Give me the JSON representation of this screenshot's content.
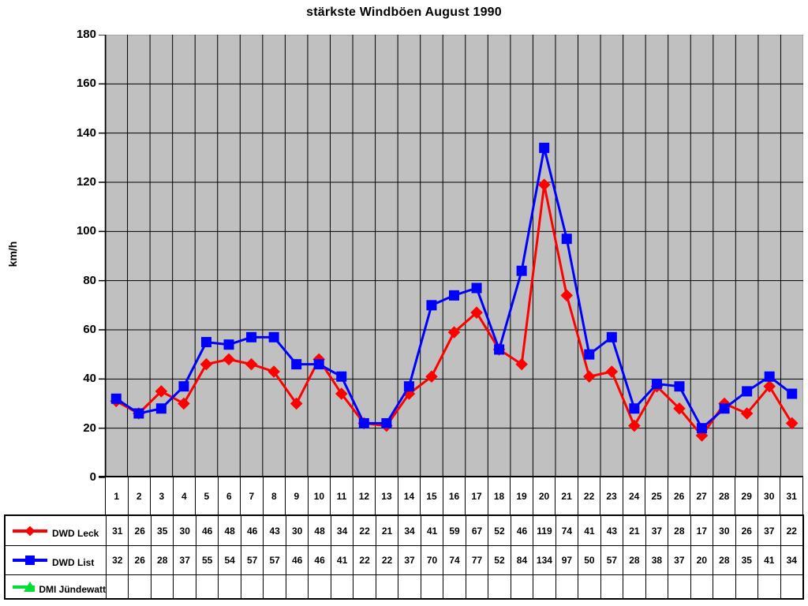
{
  "chart_data": {
    "type": "line",
    "title": "stärkste Windböen August 1990",
    "xlabel": "",
    "ylabel": "km/h",
    "ylim": [
      0,
      180
    ],
    "ytick_step": 20,
    "grid": true,
    "plot_bg_color": "#c0c0c0",
    "grid_color": "#000000",
    "axis_color": "#000000",
    "legend_position": "table-left",
    "categories": [
      1,
      2,
      3,
      4,
      5,
      6,
      7,
      8,
      9,
      10,
      11,
      12,
      13,
      14,
      15,
      16,
      17,
      18,
      19,
      20,
      21,
      22,
      23,
      24,
      25,
      26,
      27,
      28,
      29,
      30,
      31
    ],
    "series": [
      {
        "name": "DWD Leck",
        "color": "#ff0000",
        "marker": "diamond",
        "values": [
          31,
          26,
          35,
          30,
          46,
          48,
          46,
          43,
          30,
          48,
          34,
          22,
          21,
          34,
          41,
          59,
          67,
          52,
          46,
          119,
          74,
          41,
          43,
          21,
          37,
          28,
          17,
          30,
          26,
          37,
          22
        ]
      },
      {
        "name": "DWD List",
        "color": "#0000ff",
        "marker": "square",
        "values": [
          32,
          26,
          28,
          37,
          55,
          54,
          57,
          57,
          46,
          46,
          41,
          22,
          22,
          37,
          70,
          74,
          77,
          52,
          84,
          134,
          97,
          50,
          57,
          28,
          38,
          37,
          20,
          28,
          35,
          41,
          34
        ]
      },
      {
        "name": "DMI Jündewatt",
        "color": "#00dd33",
        "marker": "triangle",
        "values": []
      }
    ]
  }
}
